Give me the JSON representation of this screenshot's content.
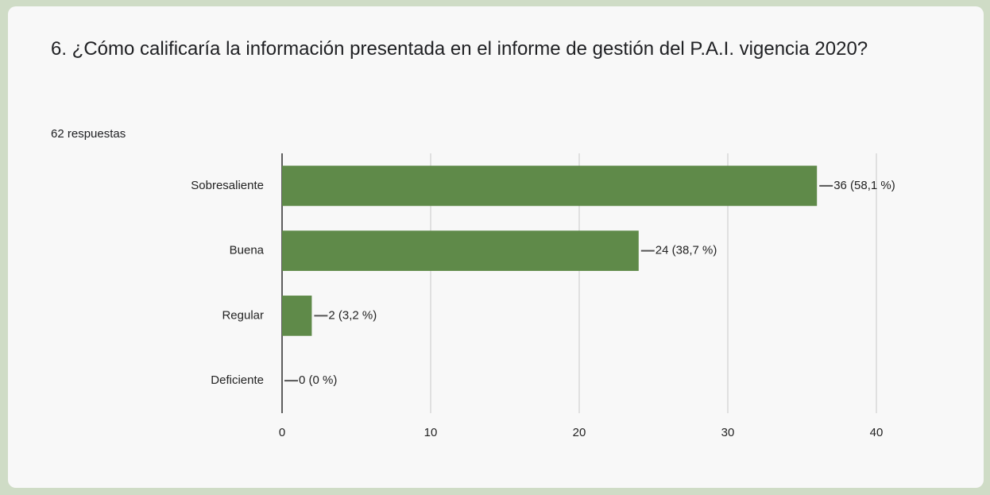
{
  "chart_data": {
    "type": "bar",
    "orientation": "horizontal",
    "title": "6. ¿Cómo calificaría la información presentada en el informe de gestión del P.A.I. vigencia 2020?",
    "subtitle": "62 respuestas",
    "categories": [
      "Sobresaliente",
      "Buena",
      "Regular",
      "Deficiente"
    ],
    "values": [
      36,
      24,
      2,
      0
    ],
    "value_labels": [
      "36 (58,1 %)",
      "24 (38,7 %)",
      "2 (3,2 %)",
      "0 (0 %)"
    ],
    "color": "#5f8a49",
    "xlim": [
      0,
      40
    ],
    "xticks": [
      0,
      10,
      20,
      30,
      40
    ],
    "grid": true
  }
}
